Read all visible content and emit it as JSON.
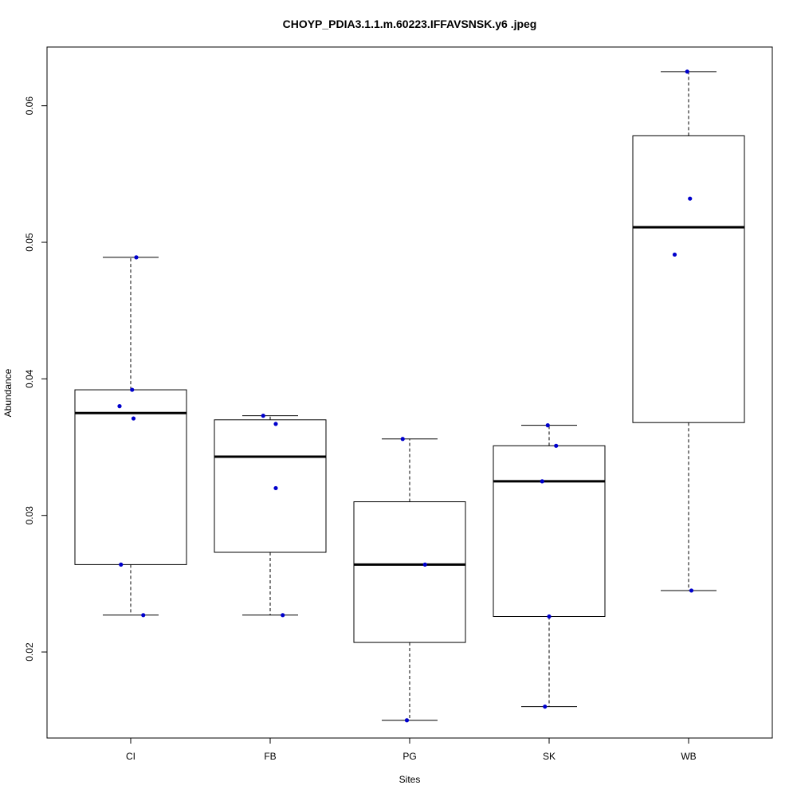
{
  "chart_data": {
    "type": "boxplot",
    "title": "CHOYP_PDIA3.1.1.m.60223.IFFAVSNSK.y6 .jpeg",
    "xlabel": "Sites",
    "ylabel": "Abundance",
    "categories": [
      "CI",
      "FB",
      "PG",
      "SK",
      "WB"
    ],
    "ylim": [
      0.0137,
      0.0643
    ],
    "yticks": [
      0.02,
      0.03,
      0.04,
      0.05,
      0.06
    ],
    "ytick_labels": [
      "0.02",
      "0.03",
      "0.04",
      "0.05",
      "0.06"
    ],
    "boxes": [
      {
        "category": "CI",
        "whisker_low": 0.0227,
        "q1": 0.0264,
        "median": 0.0375,
        "q3": 0.0392,
        "whisker_high": 0.0489
      },
      {
        "category": "FB",
        "whisker_low": 0.0227,
        "q1": 0.0273,
        "median": 0.0343,
        "q3": 0.037,
        "whisker_high": 0.0373
      },
      {
        "category": "PG",
        "whisker_low": 0.015,
        "q1": 0.0207,
        "median": 0.0264,
        "q3": 0.031,
        "whisker_high": 0.0356
      },
      {
        "category": "SK",
        "whisker_low": 0.016,
        "q1": 0.0226,
        "median": 0.0325,
        "q3": 0.0351,
        "whisker_high": 0.0366
      },
      {
        "category": "WB",
        "whisker_low": 0.0245,
        "q1": 0.0368,
        "median": 0.0511,
        "q3": 0.0578,
        "whisker_high": 0.0625
      }
    ],
    "points": [
      {
        "category": "CI",
        "values": [
          0.0489,
          0.0392,
          0.038,
          0.0371,
          0.0264,
          0.0227
        ],
        "jitter": [
          0.04,
          0.01,
          -0.08,
          0.02,
          -0.07,
          0.09
        ]
      },
      {
        "category": "FB",
        "values": [
          0.0373,
          0.0367,
          0.032,
          0.0227
        ],
        "jitter": [
          -0.05,
          0.04,
          0.04,
          0.09
        ]
      },
      {
        "category": "PG",
        "values": [
          0.0356,
          0.0264,
          0.015
        ],
        "jitter": [
          -0.05,
          0.11,
          -0.02
        ]
      },
      {
        "category": "SK",
        "values": [
          0.0366,
          0.0351,
          0.0325,
          0.0226,
          0.016
        ],
        "jitter": [
          -0.01,
          0.05,
          -0.05,
          0.0,
          -0.03
        ]
      },
      {
        "category": "WB",
        "values": [
          0.0625,
          0.0532,
          0.0491,
          0.0245
        ],
        "jitter": [
          -0.01,
          0.01,
          -0.1,
          0.02
        ]
      }
    ],
    "point_color": "#0000cc",
    "grid": false,
    "legend": "none"
  }
}
